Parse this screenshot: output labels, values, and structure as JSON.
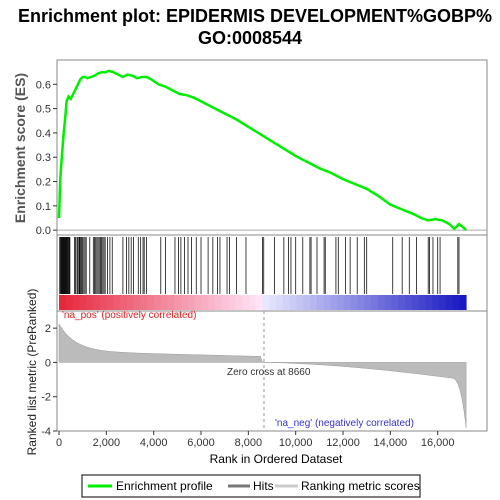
{
  "chart_data": {
    "type": "line",
    "title_line1": "Enrichment plot: EPIDERMIS DEVELOPMENT%GOBP%",
    "title_line2": "GO:0008544",
    "ylabel_es": "Enrichment score (ES)",
    "ylabel_rank": "Ranked list metric (PreRanked)",
    "xlabel": "Rank in Ordered Dataset",
    "xlim": [
      0,
      17500
    ],
    "x_ticks": [
      0,
      2000,
      4000,
      6000,
      8000,
      10000,
      12000,
      14000,
      16000
    ],
    "x_tick_labels": [
      "0",
      "2,000",
      "4,000",
      "6,000",
      "8,000",
      "10,000",
      "12,000",
      "14,000",
      "16,000"
    ],
    "es_ylim": [
      -0.02,
      0.7
    ],
    "es_ticks": [
      0.0,
      0.1,
      0.2,
      0.3,
      0.4,
      0.5,
      0.6
    ],
    "es_tick_labels": [
      "0.0",
      "0.1",
      "0.2",
      "0.3",
      "0.4",
      "0.5",
      "0.6"
    ],
    "rank_ylim": [
      -4,
      3
    ],
    "rank_ticks": [
      2,
      0,
      -2,
      -4
    ],
    "rank_tick_labels": [
      "2",
      "0",
      "-2",
      "-4"
    ],
    "es_curve": {
      "name": "Enrichment profile",
      "color": "#00ee00",
      "x": [
        0,
        60,
        120,
        200,
        260,
        320,
        400,
        500,
        600,
        700,
        800,
        900,
        1000,
        1100,
        1200,
        1350,
        1500,
        1650,
        1800,
        1950,
        2100,
        2300,
        2500,
        2700,
        2900,
        3100,
        3300,
        3500,
        3700,
        3900,
        4200,
        4500,
        4800,
        5100,
        5400,
        5700,
        6000,
        6500,
        7000,
        7500,
        8000,
        8500,
        9000,
        9500,
        10000,
        10500,
        11000,
        11500,
        12000,
        12500,
        13000,
        13500,
        14000,
        14500,
        15000,
        15300,
        15600,
        15900,
        16200,
        16500,
        16700,
        16900,
        17100,
        17200
      ],
      "y": [
        0.05,
        0.22,
        0.3,
        0.4,
        0.46,
        0.53,
        0.55,
        0.54,
        0.56,
        0.58,
        0.6,
        0.62,
        0.63,
        0.63,
        0.625,
        0.63,
        0.635,
        0.645,
        0.65,
        0.65,
        0.655,
        0.65,
        0.64,
        0.63,
        0.64,
        0.635,
        0.625,
        0.63,
        0.63,
        0.62,
        0.6,
        0.59,
        0.575,
        0.56,
        0.555,
        0.545,
        0.53,
        0.505,
        0.48,
        0.455,
        0.425,
        0.395,
        0.365,
        0.335,
        0.305,
        0.28,
        0.255,
        0.235,
        0.21,
        0.19,
        0.17,
        0.14,
        0.105,
        0.085,
        0.065,
        0.05,
        0.04,
        0.045,
        0.04,
        0.025,
        0.005,
        0.025,
        0.01,
        0.0
      ]
    },
    "hits": [
      30,
      60,
      90,
      110,
      140,
      160,
      180,
      200,
      220,
      240,
      260,
      280,
      300,
      320,
      340,
      360,
      380,
      400,
      430,
      460,
      650,
      700,
      760,
      800,
      850,
      880,
      920,
      960,
      1000,
      1050,
      1100,
      1150,
      1300,
      1450,
      1500,
      1550,
      1600,
      1650,
      1700,
      1750,
      1800,
      1850,
      1900,
      1950,
      2050,
      2150,
      2250,
      2700,
      2850,
      2950,
      3050,
      3150,
      3350,
      3450,
      3550,
      3600,
      3700,
      4300,
      4500,
      4900,
      5050,
      5150,
      5300,
      5450,
      5600,
      5800,
      6000,
      6300,
      6500,
      6700,
      6800,
      7100,
      7200,
      7500,
      7900,
      8600,
      8650,
      9100,
      9500,
      9700,
      9800,
      10000,
      10300,
      10600,
      10650,
      10900,
      11200,
      11250,
      11700,
      11800,
      12100,
      12300,
      12600,
      12900,
      13000,
      14100,
      14500,
      14800,
      15100,
      15600,
      15650,
      15800,
      16000,
      16100,
      16850,
      16900
    ],
    "zero_cross": 8660,
    "zero_cross_label": "Zero cross at 8660",
    "pos_label": "'na_pos' (positively correlated)",
    "neg_label": "'na_neg' (negatively correlated)",
    "rank_metric_name": "Ranking metric scores",
    "legend": [
      "Enrichment profile",
      "Hits",
      "Ranking metric scores"
    ],
    "n_genes": 17200
  }
}
